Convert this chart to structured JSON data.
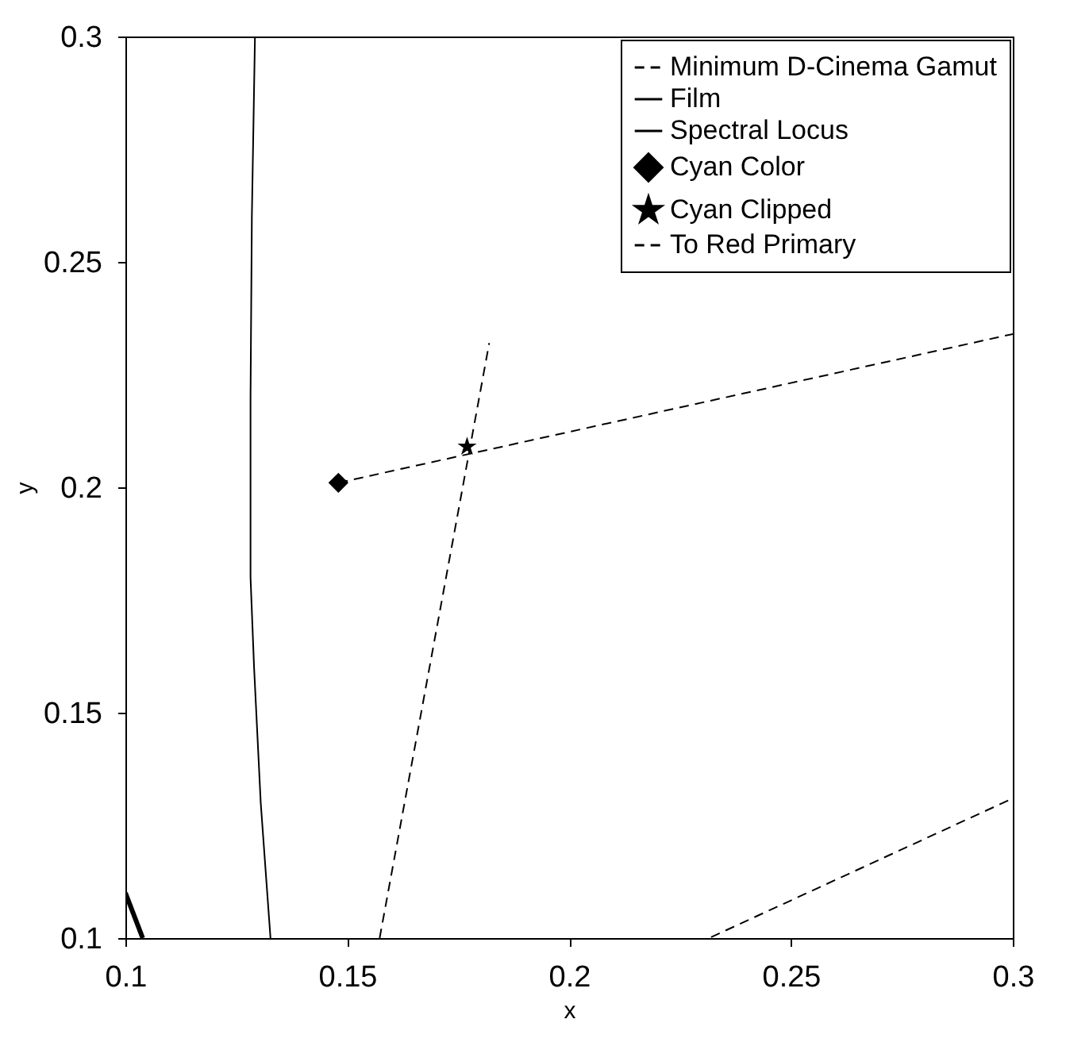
{
  "chart_data": {
    "type": "line",
    "xlabel": "x",
    "ylabel": "y",
    "xlim": [
      0.1,
      0.3
    ],
    "ylim": [
      0.1,
      0.3
    ],
    "xticks": [
      0.1,
      0.15,
      0.2,
      0.25,
      0.3
    ],
    "yticks": [
      0.1,
      0.15,
      0.2,
      0.25,
      0.3
    ],
    "grid": false,
    "legend": "top right",
    "series": [
      {
        "name": "Minimum D-Cinema Gamut",
        "type": "line",
        "line_style": "dashed",
        "color": "#000000",
        "x": [
          0.1573,
          0.182,
          null,
          0.232,
          0.3
        ],
        "values": [
          0.1,
          0.232,
          null,
          0.1002,
          0.131
        ]
      },
      {
        "name": "Film",
        "type": "line",
        "line_style": "solid",
        "color": "#000000",
        "x": [
          0.1292,
          0.1285,
          0.1282,
          0.1282,
          0.129,
          0.1305,
          0.1327
        ],
        "values": [
          0.3,
          0.26,
          0.22,
          0.18,
          0.16,
          0.13,
          0.1
        ]
      },
      {
        "name": "Spectral Locus",
        "type": "line",
        "line_style": "solid",
        "color": "#000000",
        "x": [
          0.1,
          0.1039
        ],
        "values": [
          0.11,
          0.1
        ]
      },
      {
        "name": "Cyan Color",
        "type": "scatter",
        "marker": "diamond",
        "color": "#000000",
        "x": [
          0.148
        ],
        "values": [
          0.201
        ]
      },
      {
        "name": "Cyan Clipped",
        "type": "scatter",
        "marker": "star",
        "color": "#000000",
        "x": [
          0.177
        ],
        "values": [
          0.209
        ]
      },
      {
        "name": "To Red Primary",
        "type": "line",
        "line_style": "dashed",
        "color": "#000000",
        "x": [
          0.148,
          0.3
        ],
        "values": [
          0.201,
          0.234
        ]
      }
    ]
  }
}
